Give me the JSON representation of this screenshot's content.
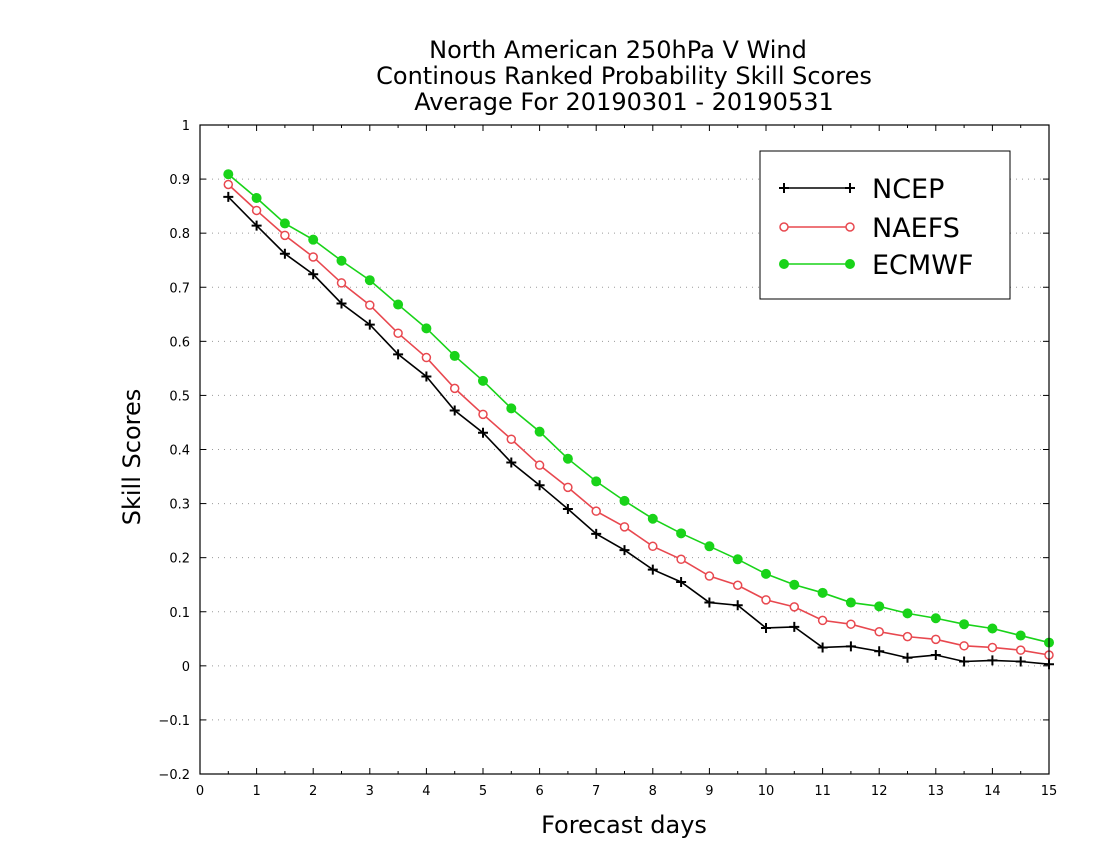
{
  "chart_data": {
    "type": "line",
    "title_lines": [
      "North American 250hPa V Wind",
      "Continous Ranked Probability Skill Scores",
      "Average For 20190301 - 20190531"
    ],
    "xlabel": "Forecast days",
    "ylabel": "Skill Scores",
    "xlim": [
      0,
      15
    ],
    "ylim": [
      -0.2,
      1
    ],
    "x_ticks": [
      "0",
      "1",
      "2",
      "3",
      "4",
      "5",
      "6",
      "7",
      "8",
      "9",
      "10",
      "11",
      "12",
      "13",
      "14",
      "15"
    ],
    "y_ticks": [
      "−0.2",
      "−0.1",
      "0",
      "0.1",
      "0.2",
      "0.3",
      "0.4",
      "0.5",
      "0.6",
      "0.7",
      "0.8",
      "0.9",
      "1"
    ],
    "grid": "horizontal dotted",
    "legend_position": "top-right",
    "x": [
      0.5,
      1,
      1.5,
      2,
      2.5,
      3,
      3.5,
      4,
      4.5,
      5,
      5.5,
      6,
      6.5,
      7,
      7.5,
      8,
      8.5,
      9,
      9.5,
      10,
      10.5,
      11,
      11.5,
      12,
      12.5,
      13,
      13.5,
      14,
      14.5,
      15
    ],
    "series": [
      {
        "name": "NCEP",
        "color": "#000000",
        "marker": "plus",
        "values": [
          0.867,
          0.814,
          0.762,
          0.724,
          0.67,
          0.631,
          0.576,
          0.535,
          0.472,
          0.431,
          0.376,
          0.334,
          0.29,
          0.244,
          0.214,
          0.178,
          0.155,
          0.117,
          0.112,
          0.07,
          0.072,
          0.034,
          0.036,
          0.027,
          0.015,
          0.02,
          0.008,
          0.01,
          0.008,
          0.003
        ]
      },
      {
        "name": "NAEFS",
        "color": "#e8484f",
        "marker": "open-circle",
        "values": [
          0.89,
          0.842,
          0.796,
          0.756,
          0.708,
          0.667,
          0.615,
          0.57,
          0.513,
          0.465,
          0.419,
          0.371,
          0.33,
          0.286,
          0.257,
          0.221,
          0.197,
          0.166,
          0.149,
          0.122,
          0.109,
          0.084,
          0.077,
          0.063,
          0.054,
          0.049,
          0.037,
          0.034,
          0.029,
          0.02
        ]
      },
      {
        "name": "ECMWF",
        "color": "#19d319",
        "marker": "filled-circle",
        "values": [
          0.909,
          0.865,
          0.818,
          0.788,
          0.749,
          0.713,
          0.668,
          0.624,
          0.573,
          0.527,
          0.476,
          0.433,
          0.383,
          0.341,
          0.305,
          0.272,
          0.245,
          0.221,
          0.197,
          0.17,
          0.15,
          0.135,
          0.117,
          0.11,
          0.097,
          0.088,
          0.077,
          0.069,
          0.056,
          0.043
        ]
      }
    ]
  }
}
